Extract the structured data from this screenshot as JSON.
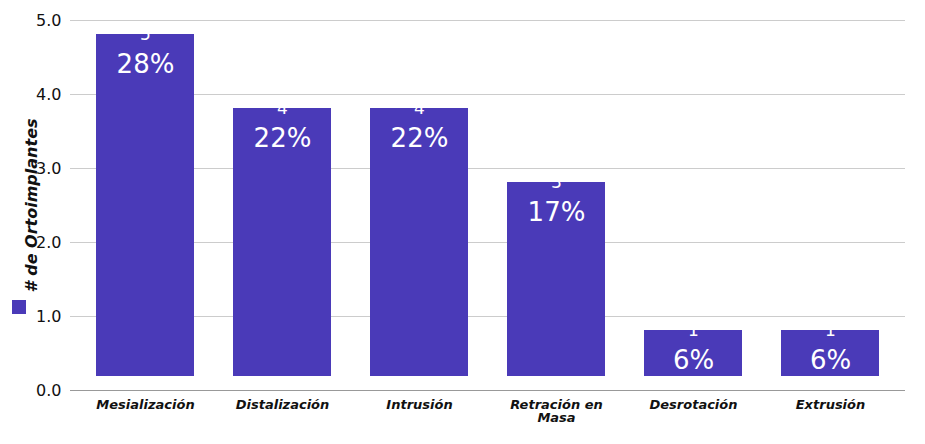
{
  "chart_data": {
    "type": "bar",
    "categories": [
      "Mesialización",
      "Distalización",
      "Intrusión",
      "Retración en Masa",
      "Desrotación",
      "Extrusión"
    ],
    "values": [
      5,
      4,
      4,
      3,
      1,
      1
    ],
    "percent_labels": [
      "28%",
      "22%",
      "22%",
      "17%",
      "6%",
      "6%"
    ],
    "color": "#4a3ab8",
    "y_label": "# de Ortoimplantes",
    "ylim": [
      0,
      5
    ],
    "yticks": [
      0,
      1,
      2,
      3,
      4,
      5
    ],
    "grid": true,
    "data_labels": true
  }
}
